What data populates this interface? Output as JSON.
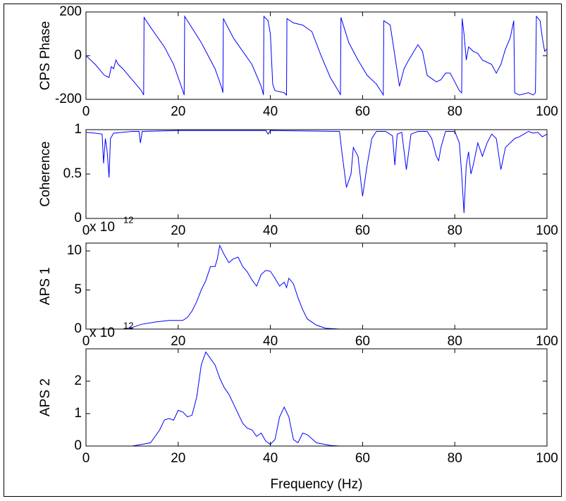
{
  "chart_data": [
    {
      "type": "line",
      "ylabel": "CPS Phase",
      "x": [
        0,
        2,
        4,
        5,
        5.5,
        6,
        6.5,
        7,
        8,
        10,
        12,
        12.5,
        12.6,
        14,
        17,
        19,
        21,
        21.3,
        21.4,
        25,
        28,
        29.5,
        29.7,
        29.8,
        32,
        36,
        38,
        38.5,
        38.6,
        39.5,
        40,
        40.5,
        41,
        43,
        43.5,
        43.6,
        45,
        47,
        49,
        51,
        53,
        55,
        55.2,
        55.3,
        57,
        59,
        61,
        63,
        64.5,
        64.6,
        66,
        67,
        68,
        69,
        70,
        72,
        73,
        74,
        76,
        77,
        78,
        79,
        80,
        81,
        81.5,
        81.6,
        82,
        82.5,
        83,
        84,
        85,
        86,
        88,
        89,
        90,
        91,
        92,
        92.8,
        93,
        94,
        96,
        97,
        97.5,
        97.7,
        98.5,
        99,
        99.5,
        100
      ],
      "values": [
        0,
        -40,
        -90,
        -100,
        -50,
        -60,
        -20,
        -40,
        -60,
        -110,
        -160,
        -180,
        175,
        130,
        40,
        -40,
        -160,
        -180,
        180,
        60,
        -60,
        -150,
        -170,
        170,
        80,
        -40,
        -140,
        -180,
        180,
        160,
        100,
        -130,
        -160,
        -170,
        -180,
        170,
        150,
        140,
        110,
        0,
        -100,
        -170,
        -180,
        175,
        60,
        -20,
        -90,
        -130,
        -180,
        160,
        140,
        0,
        -140,
        -60,
        -20,
        50,
        20,
        -90,
        -120,
        -110,
        -80,
        -80,
        -120,
        -160,
        -170,
        170,
        100,
        -20,
        40,
        20,
        10,
        -20,
        -40,
        -80,
        -40,
        30,
        80,
        160,
        -170,
        -180,
        -170,
        -180,
        -170,
        180,
        160,
        80,
        20,
        30
      ],
      "color": "#0000ff",
      "xlim": [
        0,
        100
      ],
      "xticks": [
        0,
        20,
        40,
        60,
        80,
        100
      ],
      "ylim": [
        -200,
        200
      ],
      "yticks": [
        -200,
        0,
        200
      ]
    },
    {
      "type": "line",
      "ylabel": "Coherence",
      "x": [
        0,
        2,
        3.5,
        3.8,
        4.2,
        4.6,
        5,
        5.3,
        6,
        10,
        11.5,
        11.8,
        12.2,
        20,
        39,
        39.5,
        40,
        55,
        55.5,
        56.5,
        57.5,
        58,
        59,
        60,
        61,
        62,
        63,
        65,
        66.5,
        67,
        67.5,
        68.5,
        69.5,
        70.5,
        72,
        74,
        75,
        76,
        76.5,
        77,
        78,
        80,
        81,
        81.5,
        82,
        82.5,
        83,
        83.5,
        84,
        85,
        86,
        87,
        88,
        89,
        90,
        91,
        92,
        93,
        94,
        95,
        96,
        97,
        98,
        99,
        100
      ],
      "values": [
        0.97,
        0.96,
        0.95,
        0.62,
        0.9,
        0.75,
        0.46,
        0.9,
        0.96,
        0.98,
        0.98,
        0.85,
        0.98,
        0.99,
        0.99,
        0.95,
        0.99,
        0.98,
        0.75,
        0.35,
        0.5,
        0.8,
        0.7,
        0.25,
        0.6,
        0.9,
        0.98,
        0.98,
        0.93,
        0.6,
        0.95,
        0.97,
        0.55,
        0.95,
        0.98,
        0.98,
        0.9,
        0.7,
        0.65,
        0.8,
        0.98,
        0.98,
        0.85,
        0.5,
        0.06,
        0.6,
        0.75,
        0.5,
        0.6,
        0.85,
        0.7,
        0.85,
        0.95,
        0.9,
        0.55,
        0.8,
        0.85,
        0.9,
        0.92,
        0.95,
        0.98,
        0.96,
        0.97,
        0.92,
        0.95
      ],
      "color": "#0000ff",
      "xlim": [
        0,
        100
      ],
      "xticks": [
        0,
        20,
        40,
        60,
        80,
        100
      ],
      "ylim": [
        0,
        1
      ],
      "yticks": [
        0,
        0.5,
        1
      ]
    },
    {
      "type": "line",
      "ylabel": "APS 1",
      "exponent_base": "x 10",
      "exponent_power": "12",
      "x": [
        0,
        8,
        10,
        12,
        15,
        18,
        21,
        22,
        23,
        24,
        25,
        26,
        27,
        28,
        28.5,
        29,
        30,
        31,
        32,
        33,
        34,
        35,
        36,
        37,
        38,
        39,
        40,
        41,
        42,
        43,
        43.5,
        44,
        45,
        46,
        47,
        48,
        50,
        52,
        55,
        100
      ],
      "values": [
        0,
        0,
        0.2,
        0.6,
        0.9,
        1.1,
        1.1,
        1.5,
        2.3,
        3.5,
        5,
        6.2,
        8,
        8,
        9,
        10.7,
        9.5,
        8.5,
        9,
        9.2,
        8,
        7.3,
        6.3,
        5.5,
        7,
        7.5,
        7.4,
        6.5,
        5.5,
        6,
        5.3,
        6.5,
        5.8,
        4,
        2.5,
        1.3,
        0.5,
        0.1,
        0,
        0
      ],
      "color": "#0000ff",
      "xlim": [
        0,
        100
      ],
      "xticks": [
        0,
        20,
        40,
        60,
        80,
        100
      ],
      "ylim": [
        0,
        11
      ],
      "yticks": [
        0,
        5,
        10
      ]
    },
    {
      "type": "line",
      "ylabel": "APS 2",
      "exponent_base": "x 10",
      "exponent_power": "12",
      "xlabel": "Frequency (Hz)",
      "x": [
        0,
        10,
        12,
        14,
        16,
        17,
        18,
        19,
        20,
        21,
        22,
        23,
        24,
        25,
        26,
        27,
        28,
        29,
        30,
        31,
        32,
        33,
        34,
        35,
        36,
        37,
        38,
        39,
        40,
        41,
        42,
        43,
        44,
        45,
        46,
        47,
        48,
        50,
        53,
        55,
        100
      ],
      "values": [
        0,
        0,
        0.05,
        0.1,
        0.5,
        0.8,
        0.85,
        0.8,
        1.1,
        1.05,
        0.9,
        0.95,
        1.5,
        2.5,
        2.9,
        2.7,
        2.5,
        2.1,
        1.8,
        1.6,
        1.3,
        1.0,
        0.7,
        0.55,
        0.5,
        0.3,
        0.4,
        0.15,
        0.05,
        0.2,
        0.9,
        1.2,
        0.9,
        0.2,
        0.1,
        0.4,
        0.35,
        0.1,
        0.02,
        0,
        0
      ],
      "color": "#0000ff",
      "xlim": [
        0,
        100
      ],
      "xticks": [
        0,
        20,
        40,
        60,
        80,
        100
      ],
      "ylim": [
        0,
        3
      ],
      "yticks": [
        0,
        1,
        2
      ]
    }
  ]
}
